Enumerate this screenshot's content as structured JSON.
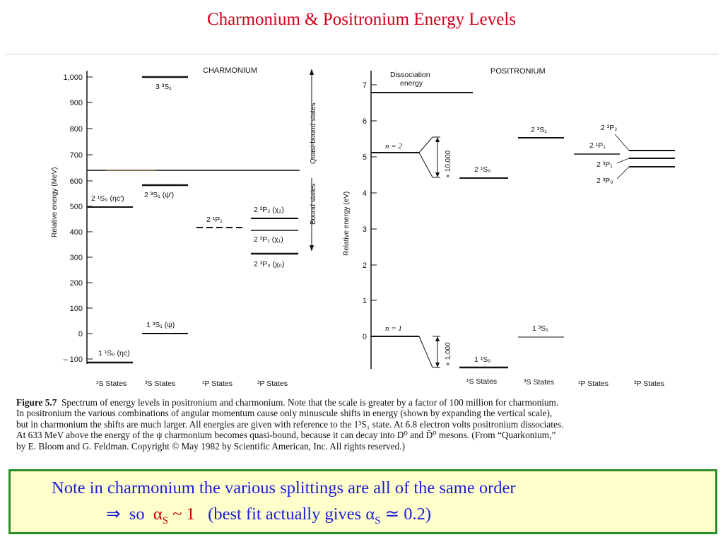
{
  "title": "Charmonium & Positronium Energy Levels",
  "charmonium": {
    "heading": "CHARMONIUM",
    "ylabel": "Relative energy (MeV)",
    "ticks": [
      "1,000",
      "900",
      "800",
      "700",
      "600",
      "500",
      "400",
      "300",
      "200",
      "100",
      "0",
      "– 100"
    ],
    "quasi_label": "Quasi-bound states",
    "bound_label": "Bound states",
    "columns": [
      "¹S States",
      "³S States",
      "¹P States",
      "³P States"
    ],
    "levels": {
      "s1_2": "2 ¹S₀ (ηc′)",
      "s1_1": "1 ¹S₀ (ηc)",
      "s3_3": "3 ³S₁",
      "s3_2": "2 ³S₁ (ψ′)",
      "s3_1": "1 ³S₁ (ψ)",
      "p1": "2 ¹P₁",
      "p3_2": "2 ³P₂ (χ₂)",
      "p3_1": "2 ³P₁ (χ₁)",
      "p3_0": "2 ³P₀ (χ₀)"
    }
  },
  "positronium": {
    "heading": "POSITRONIUM",
    "ylabel": "Relative energy (eV)",
    "ticks": [
      "7",
      "6",
      "5",
      "4",
      "3",
      "2",
      "1",
      "0"
    ],
    "dissociation": [
      "Dissociation",
      "energy"
    ],
    "n2": "n = 2",
    "n1": "n = 1",
    "scale_n2": "× 10,000",
    "scale_n1": "× 1,000",
    "columns": [
      "¹S States",
      "³S States",
      "¹P States",
      "³P States"
    ],
    "levels": {
      "s1_2": "2 ¹S₀",
      "s1_1": "1 ¹S₀",
      "s3_2": "2 ³S₁",
      "s3_1": "1 ³S₁",
      "p1": "2 ¹P₁",
      "p3_2": "2 ³P₂",
      "p3_1": "2 ³P₁",
      "p3_0": "2 ³P₀"
    }
  },
  "caption": {
    "label": "Figure 5.7",
    "lines": [
      "Spectrum of energy levels in positronium and charmonium. Note that the scale is greater by a factor of 100 million for charmonium.",
      "In positronium the various combinations of angular momentum cause only minuscule shifts in energy (shown by expanding the vertical scale),",
      "but in charmonium the shifts are much larger. All energies are given with reference to the 1³S₁ state. At 6.8 electron volts positronium dissociates.",
      "At 633 MeV above the energy of the ψ charmonium becomes quasi-bound, because it can decay into D⁰ and D̄⁰ mesons. (From “Quarkonium,”",
      "by E. Bloom and G. Feldman. Copyright © May 1982 by Scientific American, Inc. All rights reserved.)"
    ]
  },
  "note": {
    "line1": "Note in charmonium the various splittings are all of the same order",
    "arrow": "⇒",
    "so": "so",
    "alpha": "α",
    "sub_s": "S",
    "approx1": "~ 1",
    "best_fit": "(best fit actually gives",
    "approx2": "≃ 0.2)"
  }
}
